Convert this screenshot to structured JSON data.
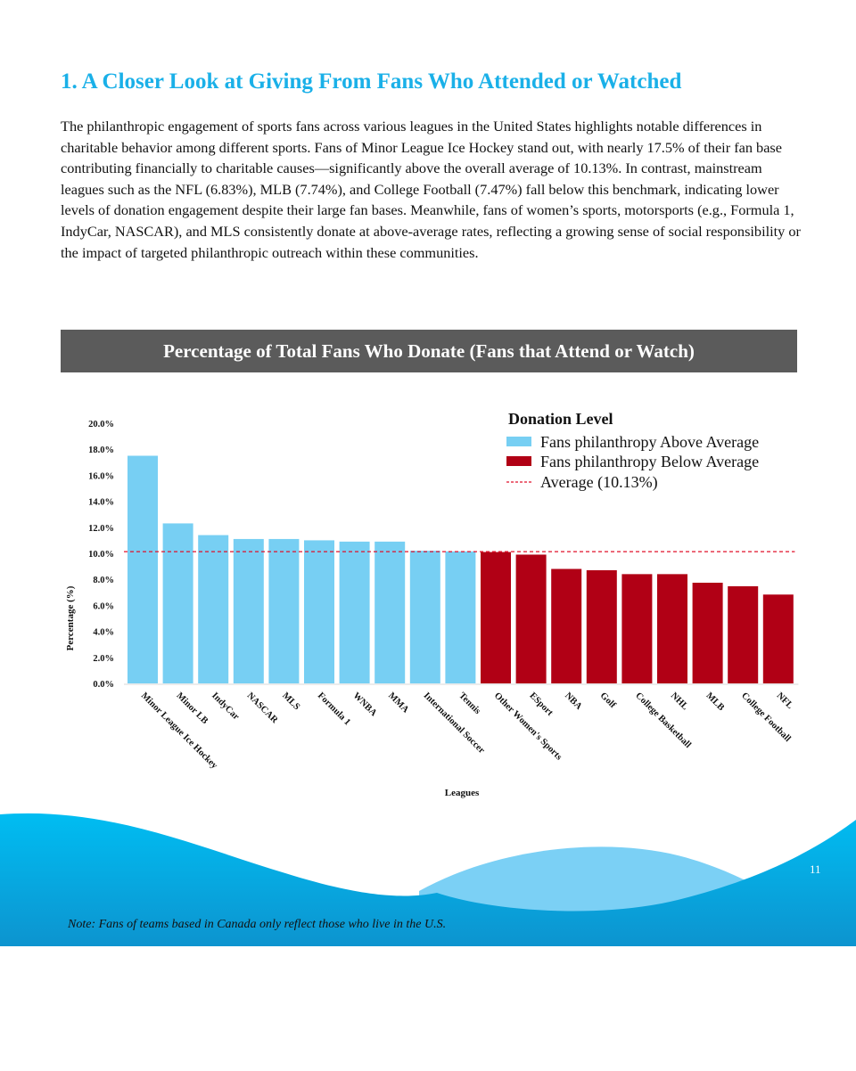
{
  "section_title": "1. A Closer Look at Giving From Fans Who Attended or Watched",
  "paragraph": "The philanthropic engagement of sports fans across various leagues in the United States highlights notable differences in charitable behavior among different sports. Fans of Minor League Ice Hockey stand out, with nearly 17.5% of their fan base contributing financially to charitable causes—significantly above the overall average of 10.13%. In contrast, mainstream leagues such as the NFL (6.83%), MLB (7.74%), and College Football (7.47%) fall below this benchmark, indicating lower levels of donation engagement despite their large fan bases. Meanwhile, fans of women’s sports, motorsports (e.g., Formula 1, IndyCar, NASCAR), and MLS consistently donate at above-average rates, reflecting a growing sense of social responsibility or the impact of targeted philanthropic outreach within these communities.",
  "chart_data": {
    "type": "bar",
    "title": "Percentage of Total Fans Who Donate (Fans that Attend or Watch)",
    "xlabel": "Leagues",
    "ylabel": "Percentage (%)",
    "ylim": [
      0,
      20
    ],
    "yticks": [
      "0.0%",
      "2.0%",
      "4.0%",
      "6.0%",
      "8.0%",
      "10.0%",
      "12.0%",
      "14.0%",
      "16.0%",
      "18.0%",
      "20.0%"
    ],
    "grid": false,
    "legend": {
      "title": "Donation Level",
      "placement": "top-right",
      "entries": [
        "Fans philanthropy Above Average",
        "Fans philanthropy Below Average",
        "Average (10.13%)"
      ]
    },
    "average": 10.13,
    "colors": {
      "above": "#77cff3",
      "below": "#b10015",
      "average_line": "#e0102a"
    },
    "categories": [
      "Minor League Ice Hockey",
      "Minor LB",
      "IndyCar",
      "NASCAR",
      "MLS",
      "Formula 1",
      "WNBA",
      "MMA",
      "International Soccer",
      "Tennis",
      "Other Women's Sports",
      "ESport",
      "NBA",
      "Golf",
      "College Basketball",
      "NHL",
      "MLB",
      "College Football",
      "NFL"
    ],
    "values": [
      17.5,
      12.3,
      11.4,
      11.1,
      11.1,
      11.0,
      10.9,
      10.9,
      10.2,
      10.15,
      10.1,
      9.9,
      8.8,
      8.7,
      8.4,
      8.4,
      7.74,
      7.47,
      6.83
    ],
    "levels": [
      "above",
      "above",
      "above",
      "above",
      "above",
      "above",
      "above",
      "above",
      "above",
      "above",
      "below",
      "below",
      "below",
      "below",
      "below",
      "below",
      "below",
      "below",
      "below"
    ]
  },
  "footer": {
    "note": "Note: Fans of teams based in Canada only reflect those who live in the U.S.",
    "page_number": "11"
  }
}
